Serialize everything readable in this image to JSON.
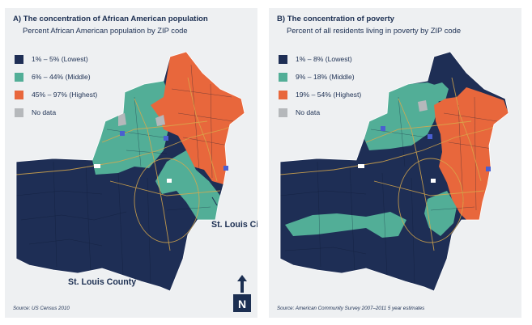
{
  "panels": [
    {
      "title": "A) The concentration of African American population",
      "subtitle": "Percent African American population by ZIP code",
      "legend": [
        {
          "label": "1% – 5% (Lowest)",
          "color": "#1e2e55"
        },
        {
          "label": "6% – 44% (Middle)",
          "color": "#52ae97"
        },
        {
          "label": "45% – 97% (Highest)",
          "color": "#e8673c"
        },
        {
          "label": "No data",
          "color": "#b5b8bb"
        }
      ],
      "source": "Source: US Census 2010",
      "city_label": "St. Louis City",
      "county_label": "St. Louis County",
      "north_label": "N"
    },
    {
      "title": "B) The concentration of poverty",
      "subtitle": "Percent of all residents living in poverty by ZIP code",
      "legend": [
        {
          "label": "1% – 8% (Lowest)",
          "color": "#1e2e55"
        },
        {
          "label": "9% – 18% (Middle)",
          "color": "#52ae97"
        },
        {
          "label": "19% – 54% (Highest)",
          "color": "#e8673c"
        },
        {
          "label": "No data",
          "color": "#b5b8bb"
        }
      ],
      "source": "Source: American Community Survey 2007–2011 5 year estimates"
    }
  ],
  "colors": {
    "low": "#1e2e55",
    "middle": "#52ae97",
    "high": "#e8673c",
    "nodata": "#b5b8bb",
    "roads": "#d9a94c",
    "panel_bg": "#eef0f2"
  }
}
